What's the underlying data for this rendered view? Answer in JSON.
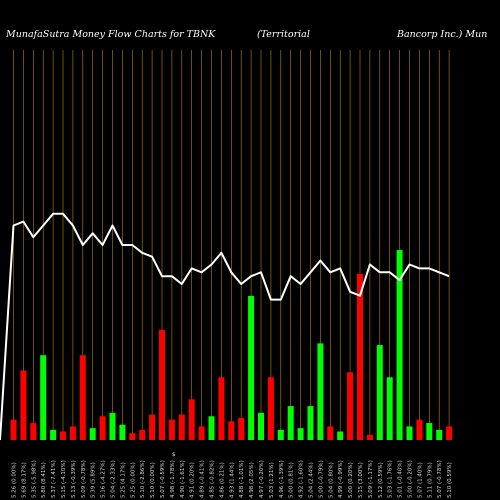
{
  "chart_data": {
    "type": "bar",
    "title": "MunafaSutra  Money Flow  Charts for TBNK",
    "title_parts": [
      "MunafaSutra  Money Flow  Charts for TBNK",
      "(Territorial",
      "Bancorp Inc.) Mun"
    ],
    "colors": {
      "up": "#00ff00",
      "down": "#ff0000",
      "line": "#ffffff",
      "grid": "#b8860b",
      "background": "#000000"
    },
    "categories": [
      "5.26 (0.00%)",
      "5.69 (8.17%)",
      "5.35 (-5.98%)",
      "5.80 (8.41%)",
      "5.37 (-7.41%)",
      "5.15 (-4.10%)",
      "5.13 (-0.39%)",
      "5.09 (-0.78%)",
      "5.39 (5.89%)",
      "5.16 (-4.27%)",
      "5.04 (-2.33%)",
      "5.25 (4.17%)",
      "5.25 (0.00%)",
      "5.10 (-2.86%)",
      "5.10 (0.00%)",
      "5.07 (-0.59%)",
      "4.98 (-1.78%)",
      "4.90 (-1.61%)",
      "4.91 (0.20%)",
      "4.89 (-0.41%)",
      "4.85 (-0.82%)",
      "4.86 (0.21%)",
      "4.93 (1.44%)",
      "4.88 (-1.01%)",
      "4.98 (2.05%)",
      "4.97 (-0.20%)",
      "5.03 (1.21%)",
      "4.96 (-1.39%)",
      "5.00 (0.81%)",
      "4.92 (-1.60%)",
      "5.04 (2.44%)",
      "5.00 (-0.79%)",
      "5.04 (0.80%)",
      "4.99 (-0.99%)",
      "5.00 (0.20%)",
      "5.15 (3.00%)",
      "5.09 (-1.17%)",
      "5.12 (0.59%)",
      "5.03 (-1.76%)",
      "5.01 (-0.40%)",
      "5.00 (-0.20%)",
      "5.07 (1.40%)",
      "5.11 (0.79%)",
      "5.07 (-0.78%)",
      "5.10 (0.59%)"
    ],
    "series": [
      {
        "values": [
          12,
          41,
          10,
          50,
          6,
          5,
          8,
          50,
          7,
          14,
          16,
          9,
          4,
          6,
          15,
          65,
          12,
          15,
          24,
          8,
          14,
          37,
          11,
          13,
          85,
          16,
          37,
          6,
          20,
          7,
          20,
          57,
          8,
          5,
          40,
          98,
          3,
          56,
          37,
          112,
          8,
          12,
          10,
          6,
          8
        ]
      },
      {
        "values": [
          0.55,
          0.56,
          0.52,
          0.55,
          0.58,
          0.58,
          0.55,
          0.5,
          0.53,
          0.5,
          0.55,
          0.5,
          0.5,
          0.48,
          0.47,
          0.42,
          0.42,
          0.4,
          0.44,
          0.43,
          0.45,
          0.48,
          0.43,
          0.4,
          0.42,
          0.43,
          0.36,
          0.36,
          0.42,
          0.4,
          0.43,
          0.46,
          0.43,
          0.44,
          0.38,
          0.37,
          0.45,
          0.43,
          0.43,
          0.41,
          0.45,
          0.44,
          0.44,
          0.43,
          0.42
        ]
      }
    ],
    "bar_colors": [
      "red",
      "red",
      "red",
      "green",
      "green",
      "red",
      "red",
      "red",
      "green",
      "red",
      "green",
      "green",
      "red",
      "red",
      "red",
      "red",
      "red",
      "red",
      "red",
      "red",
      "green",
      "red",
      "red",
      "red",
      "green",
      "green",
      "red",
      "green",
      "green",
      "green",
      "green",
      "green",
      "red",
      "green",
      "red",
      "red",
      "red",
      "green",
      "green",
      "green",
      "green",
      "red",
      "green",
      "green",
      "red"
    ],
    "ylim": [
      0,
      230
    ],
    "annotations": [
      "$"
    ],
    "grid": true,
    "legend": "none"
  }
}
